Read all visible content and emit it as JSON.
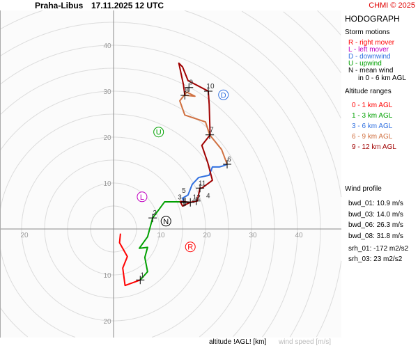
{
  "header": {
    "station": "Praha-Libus",
    "datetime": "17.11.2025 12 UTC",
    "copyright": "CHMI © 2025"
  },
  "legend": {
    "title": "HODOGRAPH",
    "storm_title": "Storm motions",
    "storm_items": [
      {
        "text": "R - right mover",
        "color": "#ff0000"
      },
      {
        "text": "L - left mover",
        "color": "#c000c0"
      },
      {
        "text": "D - downwind",
        "color": "#3070e0"
      },
      {
        "text": "U - upwind",
        "color": "#00a000"
      },
      {
        "text": "N - mean wind",
        "color": "#000000"
      }
    ],
    "storm_note": "in 0 - 6 km AGL",
    "alt_title": "Altitude ranges",
    "alt_items": [
      {
        "text": "0 - 1 km AGL",
        "color": "#ff0000"
      },
      {
        "text": "1 - 3 km AGL",
        "color": "#00a000"
      },
      {
        "text": "3 - 6 km AGL",
        "color": "#3070e0"
      },
      {
        "text": "6 - 9 km AGL",
        "color": "#d07040"
      },
      {
        "text": "9 - 12 km AGL",
        "color": "#a00000"
      }
    ]
  },
  "profile": {
    "title": "Wind profile",
    "lines": [
      "bwd_01: 10.9 m/s",
      "bwd_03: 14.0 m/s",
      "bwd_06: 26.3 m/s",
      "bwd_08: 31.8 m/s"
    ],
    "srh": [
      "srh_01: -172 m2/s2",
      "srh_03: 23 m2/s2"
    ]
  },
  "footer": {
    "altitude": "altitude !AGL! [km]",
    "speed": "wind speed [m/s]"
  },
  "chart_data": {
    "type": "line",
    "title": "HODOGRAPH",
    "xlabel": "wind speed [m/s]",
    "ring_step": 5,
    "axis_labels": {
      "top": [
        "10",
        "20",
        "30",
        "40"
      ],
      "bottom": [
        "10",
        "20"
      ],
      "left": [
        "20"
      ],
      "right": [
        "10",
        "20",
        "30",
        "40"
      ]
    },
    "series": [
      {
        "name": "0 - 1 km AGL",
        "color": "#ff0000",
        "points": [
          [
            1.5,
            -1
          ],
          [
            1.3,
            -3
          ],
          [
            3,
            -6
          ],
          [
            2,
            -8.5
          ],
          [
            2.5,
            -12.3
          ],
          [
            5.8,
            -11.1
          ]
        ]
      },
      {
        "name": "1 - 3 km AGL",
        "color": "#00a000",
        "points": [
          [
            5.8,
            -11.1
          ],
          [
            7.4,
            -9.3
          ],
          [
            6.8,
            -6.2
          ],
          [
            7.4,
            -4
          ],
          [
            5.6,
            -4.2
          ],
          [
            7.4,
            -1.7
          ],
          [
            8.5,
            2.4
          ],
          [
            10,
            4.4
          ],
          [
            11.1,
            5.9
          ],
          [
            14.8,
            5.9
          ],
          [
            15.3,
            5.8
          ]
        ]
      },
      {
        "name": "3 - 6 km AGL",
        "color": "#3070e0",
        "points": [
          [
            15.3,
            5.8
          ],
          [
            15,
            6.7
          ],
          [
            16.2,
            7.4
          ],
          [
            17.1,
            9.7
          ],
          [
            18.5,
            11.2
          ],
          [
            20.8,
            11.7
          ],
          [
            21.5,
            13.5
          ],
          [
            23,
            13.5
          ],
          [
            24,
            13.8
          ],
          [
            24.7,
            14.1
          ]
        ]
      },
      {
        "name": "6 - 9 km AGL",
        "color": "#d07040",
        "points": [
          [
            24.7,
            14.1
          ],
          [
            23.5,
            17.3
          ],
          [
            21.7,
            19.5
          ],
          [
            20.9,
            20.5
          ],
          [
            20,
            23.3
          ],
          [
            15.5,
            24.8
          ],
          [
            14.4,
            27.9
          ],
          [
            15.9,
            29.8
          ],
          [
            17.7,
            28.9
          ],
          [
            15.5,
            29.1
          ]
        ]
      },
      {
        "name": "9 - 12 km AGL",
        "color": "#a00000",
        "points": [
          [
            15.5,
            29.1
          ],
          [
            15.2,
            31.4
          ],
          [
            14.2,
            36.1
          ],
          [
            15,
            35.3
          ],
          [
            16.2,
            32.3
          ],
          [
            20.6,
            30
          ],
          [
            20.8,
            27.1
          ],
          [
            21,
            20.5
          ],
          [
            19.2,
            18.2
          ],
          [
            20.5,
            14.4
          ],
          [
            21.5,
            10.6
          ],
          [
            19.2,
            8.9
          ],
          [
            18.8,
            8.9
          ],
          [
            18.2,
            6.1
          ],
          [
            16.7,
            5.8
          ],
          [
            15,
            5
          ],
          [
            14.5,
            6
          ],
          [
            16.7,
            5.8
          ]
        ]
      }
    ],
    "height_marks": [
      {
        "label": "1",
        "u": 5.8,
        "v": -11.1
      },
      {
        "label": "2",
        "u": 8.5,
        "v": 2.4
      },
      {
        "label": "3",
        "u": 15.3,
        "v": 5.8
      },
      {
        "label": "4",
        "u": 18,
        "v": 6.1
      },
      {
        "label": "5",
        "u": 15.6,
        "v": 5.9
      },
      {
        "label": "6",
        "u": 24.7,
        "v": 14.1
      },
      {
        "label": "7",
        "u": 20.9,
        "v": 20.5
      },
      {
        "label": "8",
        "u": 15.5,
        "v": 29.1
      },
      {
        "label": "9",
        "u": 16.4,
        "v": 30.8
      },
      {
        "label": "10",
        "u": 20.6,
        "v": 30
      },
      {
        "label": "11",
        "u": 18.8,
        "v": 8.9
      },
      {
        "label": "12",
        "u": 16.7,
        "v": 5.8
      }
    ],
    "storm_motions": [
      {
        "label": "R",
        "u": 16.7,
        "v": -3.9,
        "color": "#ff0000"
      },
      {
        "label": "L",
        "u": 6.2,
        "v": 7,
        "color": "#c000c0"
      },
      {
        "label": "D",
        "u": 23.9,
        "v": 29.2,
        "color": "#3070e0"
      },
      {
        "label": "U",
        "u": 9.8,
        "v": 21.1,
        "color": "#00a000"
      },
      {
        "label": "N",
        "u": 11.4,
        "v": 1.7,
        "color": "#000000"
      }
    ]
  }
}
